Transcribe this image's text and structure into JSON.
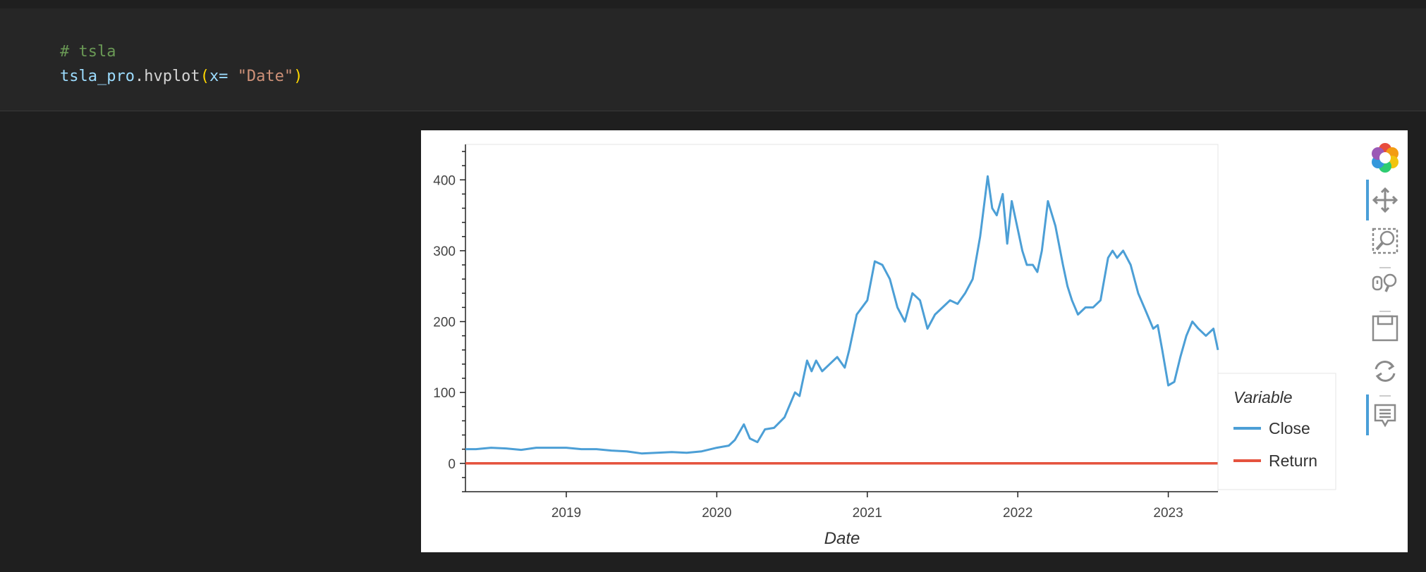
{
  "code": {
    "comment": "# tsla",
    "var_name": "tsla_pro",
    "dot": ".",
    "method": "hvplot",
    "open_paren": "(",
    "arg": "x= ",
    "arg_value": "\"Date\"",
    "close_paren": ")"
  },
  "colors": {
    "close": "#4c9fd6",
    "return": "#e5533e"
  },
  "legend": {
    "title": "Variable",
    "items": [
      "Close",
      "Return"
    ]
  },
  "toolbar": {
    "tools": [
      "bokeh-logo-icon",
      "pan-icon",
      "box-zoom-icon",
      "wheel-zoom-icon",
      "save-icon",
      "reset-icon",
      "hover-icon"
    ]
  },
  "chart_data": {
    "type": "line",
    "xlabel": "Date",
    "ylabel": "",
    "xlim": [
      2018.33,
      2023.33
    ],
    "ylim": [
      -40,
      450
    ],
    "x_tick_labels": [
      "2019",
      "2020",
      "2021",
      "2022",
      "2023"
    ],
    "y_tick_labels": [
      "0",
      "100",
      "200",
      "300",
      "400"
    ],
    "series": [
      {
        "name": "Close",
        "x": [
          2018.33,
          2018.4,
          2018.5,
          2018.6,
          2018.7,
          2018.8,
          2018.9,
          2019.0,
          2019.1,
          2019.2,
          2019.3,
          2019.4,
          2019.5,
          2019.6,
          2019.7,
          2019.8,
          2019.9,
          2020.0,
          2020.08,
          2020.12,
          2020.18,
          2020.22,
          2020.27,
          2020.32,
          2020.38,
          2020.45,
          2020.52,
          2020.55,
          2020.6,
          2020.63,
          2020.66,
          2020.7,
          2020.75,
          2020.8,
          2020.85,
          2020.88,
          2020.93,
          2021.0,
          2021.05,
          2021.1,
          2021.15,
          2021.2,
          2021.25,
          2021.3,
          2021.35,
          2021.4,
          2021.45,
          2021.5,
          2021.55,
          2021.6,
          2021.65,
          2021.7,
          2021.75,
          2021.8,
          2021.83,
          2021.86,
          2021.9,
          2021.93,
          2021.96,
          2022.0,
          2022.03,
          2022.06,
          2022.1,
          2022.13,
          2022.16,
          2022.2,
          2022.25,
          2022.3,
          2022.33,
          2022.36,
          2022.4,
          2022.45,
          2022.5,
          2022.55,
          2022.6,
          2022.63,
          2022.66,
          2022.7,
          2022.75,
          2022.8,
          2022.85,
          2022.9,
          2022.93,
          2022.96,
          2023.0,
          2023.04,
          2023.08,
          2023.12,
          2023.16,
          2023.2,
          2023.25,
          2023.3,
          2023.33
        ],
        "values": [
          20,
          20,
          22,
          21,
          19,
          22,
          22,
          22,
          20,
          20,
          18,
          17,
          14,
          15,
          16,
          15,
          17,
          22,
          25,
          33,
          55,
          35,
          30,
          48,
          50,
          65,
          100,
          95,
          145,
          130,
          145,
          130,
          140,
          150,
          135,
          160,
          210,
          230,
          285,
          280,
          260,
          220,
          200,
          240,
          230,
          190,
          210,
          220,
          230,
          225,
          240,
          260,
          320,
          405,
          360,
          350,
          380,
          310,
          370,
          330,
          300,
          280,
          280,
          270,
          300,
          370,
          335,
          280,
          250,
          230,
          210,
          220,
          220,
          230,
          290,
          300,
          290,
          300,
          280,
          240,
          215,
          190,
          195,
          160,
          110,
          115,
          150,
          180,
          200,
          190,
          180,
          190,
          160
        ]
      },
      {
        "name": "Return",
        "x": [
          2018.33,
          2023.33
        ],
        "values": [
          0,
          0
        ]
      }
    ]
  }
}
